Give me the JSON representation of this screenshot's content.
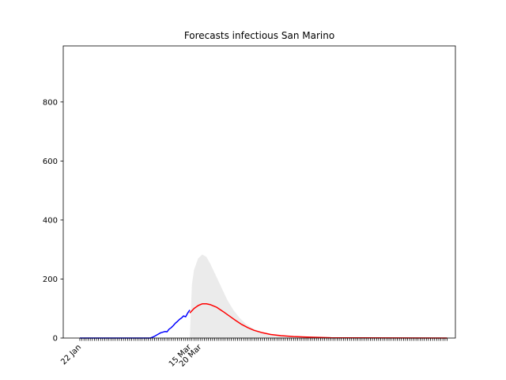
{
  "chart_data": {
    "type": "line",
    "title": "Forecasts infectious San Marino",
    "xlabel": "",
    "ylabel": "",
    "x_start_date": "2020-01-22",
    "x_range": [
      "2020-01-14",
      "2020-07-21"
    ],
    "ylim": [
      0,
      990
    ],
    "yticks": [
      0,
      200,
      400,
      600,
      800
    ],
    "xtick_labels": [
      {
        "date": "2020-01-22",
        "label": "22 Jan"
      },
      {
        "date": "2020-03-15",
        "label": "15 Mar"
      },
      {
        "date": "2020-03-20",
        "label": "20 Mar"
      }
    ],
    "grid": false,
    "legend": "none",
    "series": [
      {
        "color": "#0000ff",
        "points": [
          [
            "2020-01-22",
            0
          ],
          [
            "2020-02-25",
            0
          ],
          [
            "2020-02-26",
            3
          ],
          [
            "2020-02-27",
            6
          ],
          [
            "2020-02-28",
            10
          ],
          [
            "2020-02-29",
            14
          ],
          [
            "2020-03-01",
            18
          ],
          [
            "2020-03-02",
            20
          ],
          [
            "2020-03-03",
            22
          ],
          [
            "2020-03-04",
            21
          ],
          [
            "2020-03-05",
            30
          ],
          [
            "2020-03-06",
            35
          ],
          [
            "2020-03-07",
            42
          ],
          [
            "2020-03-08",
            50
          ],
          [
            "2020-03-09",
            56
          ],
          [
            "2020-03-10",
            63
          ],
          [
            "2020-03-11",
            68
          ],
          [
            "2020-03-12",
            75
          ],
          [
            "2020-03-13",
            72
          ],
          [
            "2020-03-14",
            85
          ],
          [
            "2020-03-15",
            95
          ]
        ]
      },
      {
        "color": "#ff0000",
        "points": [
          [
            "2020-03-15",
            85
          ],
          [
            "2020-03-17",
            100
          ],
          [
            "2020-03-19",
            110
          ],
          [
            "2020-03-21",
            116
          ],
          [
            "2020-03-23",
            116
          ],
          [
            "2020-03-25",
            113
          ],
          [
            "2020-03-28",
            104
          ],
          [
            "2020-03-31",
            90
          ],
          [
            "2020-04-03",
            75
          ],
          [
            "2020-04-06",
            60
          ],
          [
            "2020-04-09",
            46
          ],
          [
            "2020-04-12",
            35
          ],
          [
            "2020-04-15",
            26
          ],
          [
            "2020-04-19",
            18
          ],
          [
            "2020-04-23",
            12
          ],
          [
            "2020-04-28",
            8
          ],
          [
            "2020-05-04",
            5
          ],
          [
            "2020-05-12",
            3
          ],
          [
            "2020-05-22",
            1
          ],
          [
            "2020-06-05",
            0.5
          ],
          [
            "2020-07-17",
            0
          ]
        ]
      }
    ],
    "band": {
      "color": "#ebebeb",
      "points": [
        [
          "2020-03-15",
          0,
          0
        ],
        [
          "2020-03-16",
          0,
          180
        ],
        [
          "2020-03-17",
          0,
          230
        ],
        [
          "2020-03-19",
          0,
          270
        ],
        [
          "2020-03-21",
          0,
          283
        ],
        [
          "2020-03-23",
          0,
          275
        ],
        [
          "2020-03-25",
          0,
          250
        ],
        [
          "2020-03-27",
          0,
          220
        ],
        [
          "2020-03-30",
          0,
          175
        ],
        [
          "2020-04-02",
          0,
          130
        ],
        [
          "2020-04-05",
          0,
          95
        ],
        [
          "2020-04-08",
          0,
          68
        ],
        [
          "2020-04-11",
          0,
          48
        ],
        [
          "2020-04-14",
          0,
          34
        ],
        [
          "2020-04-18",
          0,
          22
        ],
        [
          "2020-04-23",
          0,
          13
        ],
        [
          "2020-04-30",
          0,
          7
        ],
        [
          "2020-05-10",
          0,
          3
        ],
        [
          "2020-05-25",
          0,
          1
        ],
        [
          "2020-07-17",
          0,
          0
        ]
      ]
    }
  }
}
